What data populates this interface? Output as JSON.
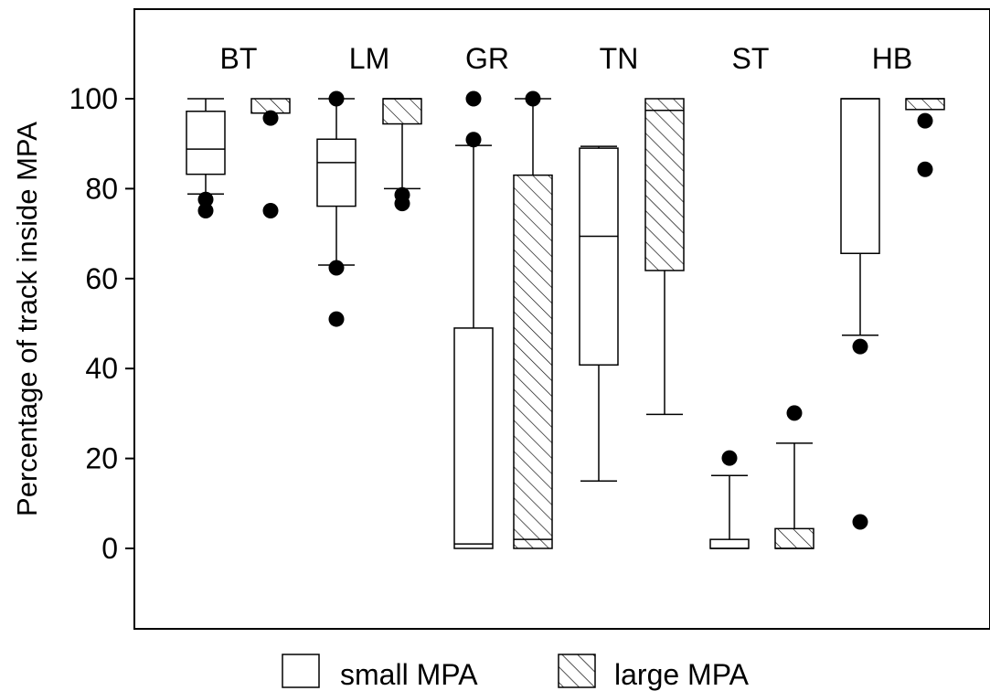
{
  "chart_data": {
    "type": "boxplot",
    "ylabel": "Percentage of track inside MPA",
    "ylim": [
      -18,
      118
    ],
    "yticks": [
      0,
      20,
      40,
      60,
      80,
      100
    ],
    "grid": false,
    "legend_position": "bottom-center",
    "series": [
      {
        "name": "small MPA",
        "pattern": "none"
      },
      {
        "name": "large MPA",
        "pattern": "hatch"
      }
    ],
    "groups": [
      {
        "label": "BT",
        "small": {
          "whisker_low": 78.8,
          "q1": 83.2,
          "median": 88.8,
          "q3": 97.2,
          "whisker_high": 100,
          "outliers": [
            77.6,
            75.1
          ]
        },
        "large": {
          "whisker_low": 96.8,
          "q1": 96.8,
          "median": 96.8,
          "q3": 100,
          "whisker_high": 100,
          "outliers": [
            95.7,
            75.1
          ]
        }
      },
      {
        "label": "LM",
        "small": {
          "whisker_low": 63.0,
          "q1": 76.1,
          "median": 85.8,
          "q3": 91.0,
          "whisker_high": 100,
          "outliers": [
            100,
            62.4,
            51.0
          ]
        },
        "large": {
          "whisker_low": 80.0,
          "q1": 94.4,
          "median": 100,
          "q3": 100,
          "whisker_high": 100,
          "outliers": [
            78.6,
            76.7
          ]
        }
      },
      {
        "label": "GR",
        "small": {
          "whisker_low": 0,
          "q1": 0,
          "median": 1.0,
          "q3": 49.0,
          "whisker_high": 89.6,
          "outliers": [
            100,
            90.9
          ]
        },
        "large": {
          "whisker_low": 0,
          "q1": 0,
          "median": 2.0,
          "q3": 83.0,
          "whisker_high": 100,
          "outliers": [
            100
          ]
        }
      },
      {
        "label": "TN",
        "small": {
          "whisker_low": 15.0,
          "q1": 40.8,
          "median": 69.4,
          "q3": 89.0,
          "whisker_high": 89.4,
          "outliers": []
        },
        "large": {
          "whisker_low": 29.8,
          "q1": 61.8,
          "median": 97.4,
          "q3": 100,
          "whisker_high": 100,
          "outliers": []
        }
      },
      {
        "label": "ST",
        "small": {
          "whisker_low": 0,
          "q1": 0,
          "median": 0,
          "q3": 2.0,
          "whisker_high": 16.2,
          "outliers": [
            20.1
          ]
        },
        "large": {
          "whisker_low": 0,
          "q1": 0,
          "median": 0,
          "q3": 4.4,
          "whisker_high": 23.4,
          "outliers": [
            30.1
          ]
        }
      },
      {
        "label": "HB",
        "small": {
          "whisker_low": 47.4,
          "q1": 65.6,
          "median": 100,
          "q3": 100,
          "whisker_high": 100,
          "outliers": [
            44.9,
            5.9
          ]
        },
        "large": {
          "whisker_low": 97.6,
          "q1": 97.6,
          "median": 100,
          "q3": 100,
          "whisker_high": 100,
          "outliers": [
            95.1,
            84.3
          ]
        }
      }
    ]
  }
}
